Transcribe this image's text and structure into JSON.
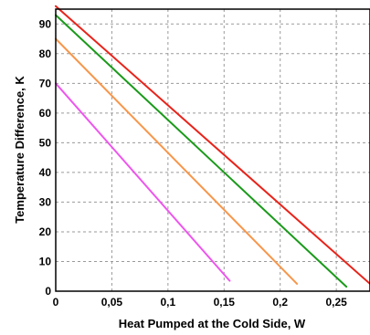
{
  "chart_data": {
    "type": "line",
    "xlabel": "Heat Pumped at the Cold Side, W",
    "ylabel": "Temperature Difference, K",
    "xlim": [
      0,
      0.28
    ],
    "ylim": [
      0,
      95
    ],
    "x_ticks": [
      0,
      0.05,
      0.1,
      0.15,
      0.2,
      0.25
    ],
    "x_tick_labels": [
      "0",
      "0,05",
      "0,1",
      "0,15",
      "0,2",
      "0,25"
    ],
    "y_ticks": [
      0,
      10,
      20,
      30,
      40,
      50,
      60,
      70,
      80,
      90
    ],
    "y_tick_labels": [
      "0",
      "10",
      "20",
      "30",
      "40",
      "50",
      "60",
      "70",
      "80",
      "90"
    ],
    "grid": true,
    "series": [
      {
        "color": "#e8231a",
        "points": [
          [
            0,
            96
          ],
          [
            0.28,
            2.5
          ]
        ]
      },
      {
        "color": "#1a9a1a",
        "points": [
          [
            0,
            93
          ],
          [
            0.259,
            1.5
          ]
        ]
      },
      {
        "color": "#f7964a",
        "points": [
          [
            0,
            85
          ],
          [
            0.215,
            2.5
          ]
        ]
      },
      {
        "color": "#ee55ee",
        "points": [
          [
            0,
            70
          ],
          [
            0.155,
            3.5
          ]
        ]
      }
    ]
  }
}
